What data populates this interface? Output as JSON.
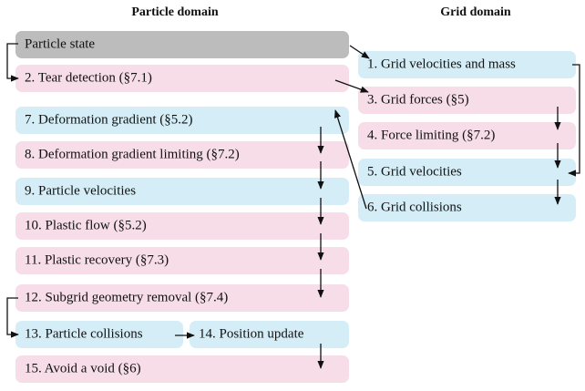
{
  "headers": {
    "particle": "Particle domain",
    "grid": "Grid domain"
  },
  "particle_steps": [
    "Particle state",
    "2. Tear detection (§7.1)",
    "7. Deformation gradient (§5.2)",
    "8. Deformation gradient limiting (§7.2)",
    "9. Particle velocities",
    "10. Plastic flow (§5.2)",
    "11. Plastic recovery (§7.3)",
    "12. Subgrid geometry removal (§7.4)",
    "13. Particle collisions",
    "14. Position update",
    "15. Avoid a void (§6)"
  ],
  "grid_steps": [
    "1. Grid velocities and mass",
    "3. Grid forces (§5)",
    "4. Force limiting (§7.2)",
    "5. Grid velocities",
    "6. Grid collisions"
  ]
}
